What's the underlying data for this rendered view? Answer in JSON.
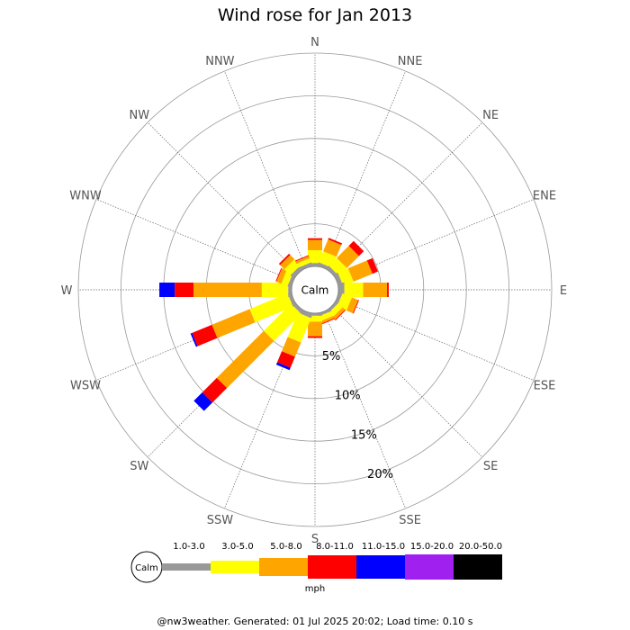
{
  "chart_data": {
    "type": "windrose",
    "title": "Wind rose for Jan 2013",
    "calm_label": "Calm",
    "directions": [
      "N",
      "NNE",
      "NE",
      "ENE",
      "E",
      "ESE",
      "SE",
      "SSE",
      "S",
      "SSW",
      "SW",
      "WSW",
      "W",
      "WNW",
      "NW",
      "NNW"
    ],
    "ring_labels": [
      "5%",
      "10%",
      "15%",
      "20%"
    ],
    "ring_values": [
      5,
      10,
      15,
      20
    ],
    "max_ring": 25,
    "unit": "mph",
    "speed_bins": [
      {
        "label": "1.0-3.0",
        "color": "#999999"
      },
      {
        "label": "3.0-5.0",
        "color": "#ffff00"
      },
      {
        "label": "5.0-8.0",
        "color": "#ffa500"
      },
      {
        "label": "8.0-11.0",
        "color": "#ff0000"
      },
      {
        "label": "11.0-15.0",
        "color": "#0000ff"
      },
      {
        "label": "15.0-20.0",
        "color": "#a020f0"
      },
      {
        "label": "20.0-50.0",
        "color": "#000000"
      }
    ],
    "percentages": [
      [
        0.4,
        1.5,
        1.2,
        0.2,
        0,
        0,
        0
      ],
      [
        0.4,
        1.4,
        1.5,
        0.2,
        0,
        0,
        0
      ],
      [
        0.4,
        1.3,
        2.0,
        0.8,
        0,
        0,
        0
      ],
      [
        0.5,
        1.3,
        2.4,
        0.7,
        0,
        0,
        0
      ],
      [
        0.7,
        2.2,
        2.8,
        0.2,
        0,
        0,
        0
      ],
      [
        0.4,
        1.2,
        0.8,
        0.1,
        0,
        0,
        0
      ],
      [
        0.3,
        0.7,
        0.4,
        0.1,
        0,
        0,
        0
      ],
      [
        0.3,
        0.6,
        0.3,
        0.1,
        0,
        0,
        0
      ],
      [
        0.3,
        0.7,
        1.7,
        0.2,
        0,
        0,
        0
      ],
      [
        0.5,
        3.1,
        1.8,
        1.4,
        0.3,
        0,
        0
      ],
      [
        0.4,
        4.5,
        7.8,
        2.4,
        1.4,
        0,
        0
      ],
      [
        0.4,
        4.8,
        4.8,
        2.5,
        0.2,
        0,
        0
      ],
      [
        0.4,
        3.1,
        8.0,
        2.2,
        1.8,
        0,
        0
      ],
      [
        0.4,
        0.8,
        0.6,
        0.1,
        0,
        0,
        0
      ],
      [
        0.5,
        1.0,
        0.7,
        0.2,
        0,
        0,
        0
      ],
      [
        0.4,
        0.5,
        0.3,
        0.1,
        0,
        0,
        0
      ]
    ]
  },
  "footer": "@nw3weather. Generated: 01 Jul 2025 20:02; Load time: 0.10 s"
}
